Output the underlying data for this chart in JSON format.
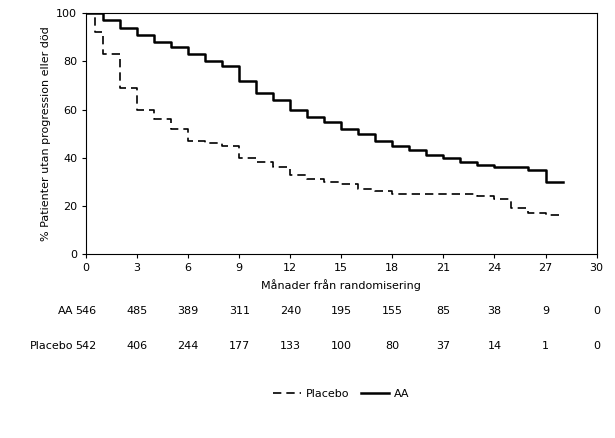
{
  "xlabel": "Månader från randomisering",
  "ylabel": "% Patienter utan progression eller död",
  "xlim": [
    0,
    30
  ],
  "ylim": [
    0,
    100
  ],
  "xticks": [
    0,
    3,
    6,
    9,
    12,
    15,
    18,
    21,
    24,
    27,
    30
  ],
  "yticks": [
    0,
    20,
    40,
    60,
    80,
    100
  ],
  "AA_x": [
    0,
    1,
    1,
    2,
    2,
    3,
    3,
    4,
    4,
    5,
    5,
    6,
    6,
    7,
    7,
    8,
    8,
    9,
    9,
    10,
    10,
    11,
    11,
    12,
    12,
    13,
    13,
    14,
    14,
    15,
    15,
    16,
    16,
    17,
    17,
    18,
    18,
    19,
    19,
    20,
    20,
    21,
    21,
    22,
    22,
    23,
    23,
    24,
    24,
    25,
    25,
    26,
    26,
    27,
    27,
    28
  ],
  "AA_y": [
    100,
    100,
    97,
    97,
    94,
    94,
    91,
    91,
    88,
    88,
    86,
    86,
    83,
    83,
    80,
    80,
    78,
    78,
    72,
    72,
    67,
    67,
    64,
    64,
    60,
    60,
    57,
    57,
    55,
    55,
    52,
    52,
    50,
    50,
    47,
    47,
    45,
    45,
    43,
    43,
    41,
    41,
    40,
    40,
    38,
    38,
    37,
    37,
    36,
    36,
    36,
    36,
    35,
    35,
    30,
    30
  ],
  "Placebo_x": [
    0,
    0.5,
    0.5,
    1,
    1,
    2,
    2,
    3,
    3,
    4,
    4,
    5,
    5,
    6,
    6,
    7,
    7,
    8,
    8,
    9,
    9,
    10,
    10,
    11,
    11,
    12,
    12,
    13,
    13,
    14,
    14,
    15,
    15,
    16,
    16,
    17,
    17,
    18,
    18,
    19,
    19,
    20,
    20,
    21,
    21,
    22,
    22,
    23,
    23,
    24,
    24,
    25,
    25,
    26,
    26,
    27,
    27,
    28
  ],
  "Placebo_y": [
    100,
    100,
    92,
    92,
    83,
    83,
    69,
    69,
    60,
    60,
    56,
    56,
    52,
    52,
    47,
    47,
    46,
    46,
    45,
    45,
    40,
    40,
    38,
    38,
    36,
    36,
    33,
    33,
    31,
    31,
    30,
    30,
    29,
    29,
    27,
    27,
    26,
    26,
    25,
    25,
    25,
    25,
    25,
    25,
    25,
    25,
    25,
    25,
    24,
    24,
    23,
    23,
    19,
    19,
    17,
    17,
    16,
    16
  ],
  "at_risk_times": [
    0,
    3,
    6,
    9,
    12,
    15,
    18,
    21,
    24,
    27,
    30
  ],
  "AA_at_risk": [
    546,
    485,
    389,
    311,
    240,
    195,
    155,
    85,
    38,
    9,
    0
  ],
  "Placebo_at_risk": [
    542,
    406,
    244,
    177,
    133,
    100,
    80,
    37,
    14,
    1,
    0
  ],
  "legend_label_AA": "AA",
  "legend_label_Placebo": "Placebo",
  "fontsize_axis_label": 8,
  "fontsize_ticks": 8,
  "fontsize_table": 8
}
